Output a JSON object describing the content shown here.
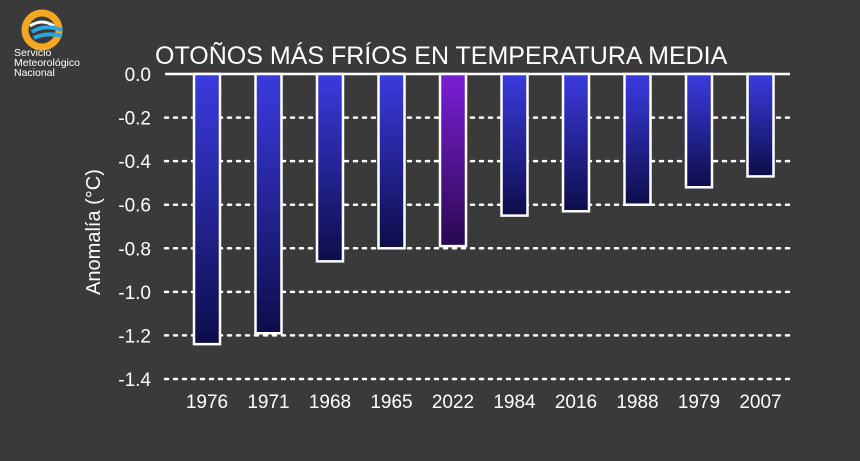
{
  "organization": {
    "lines": [
      "Servicio",
      "Meteorológico",
      "Nacional"
    ],
    "logo_icon": "smn-logo-icon"
  },
  "colors": {
    "background": "#3a3a3a",
    "bar_top": "#3b3be0",
    "bar_bottom": "#0d0d4a",
    "highlight_top": "#7a1fd6",
    "highlight_bottom": "#2a0850",
    "bar_border": "#ffffff",
    "grid": "#ffffff"
  },
  "chart_data": {
    "type": "bar",
    "title": "OTOÑOS MÁS FRÍOS EN TEMPERATURA MEDIA",
    "xlabel": "",
    "ylabel": "Anomalía (°C)",
    "categories": [
      "1976",
      "1971",
      "1968",
      "1965",
      "2022",
      "1984",
      "2016",
      "1988",
      "1979",
      "2007"
    ],
    "values": [
      -1.24,
      -1.19,
      -0.86,
      -0.8,
      -0.79,
      -0.65,
      -0.63,
      -0.6,
      -0.52,
      -0.47
    ],
    "highlight": "2022",
    "ylim": [
      -1.4,
      0.0
    ],
    "yticks": [
      "0.0",
      "-0.2",
      "-0.4",
      "-0.6",
      "-0.8",
      "-1.0",
      "-1.2",
      "-1.4"
    ],
    "ytick_values": [
      0.0,
      -0.2,
      -0.4,
      -0.6,
      -0.8,
      -1.0,
      -1.2,
      -1.4
    ],
    "grid": true,
    "grid_style": "dotted"
  }
}
